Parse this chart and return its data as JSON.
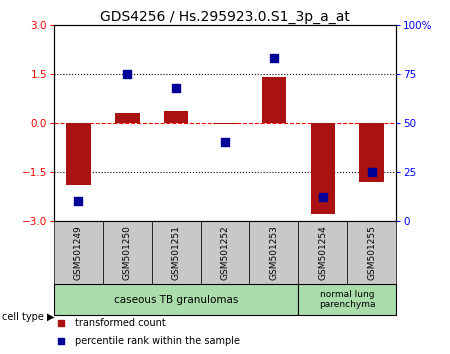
{
  "title": "GDS4256 / Hs.295923.0.S1_3p_a_at",
  "samples": [
    "GSM501249",
    "GSM501250",
    "GSM501251",
    "GSM501252",
    "GSM501253",
    "GSM501254",
    "GSM501255"
  ],
  "red_values": [
    -1.9,
    0.3,
    0.35,
    -0.05,
    1.4,
    -2.8,
    -1.8
  ],
  "blue_values_pct": [
    10,
    75,
    68,
    40,
    83,
    12,
    25
  ],
  "ylim": [
    -3,
    3
  ],
  "pct_lim": [
    0,
    100
  ],
  "yticks_left": [
    -3,
    -1.5,
    0,
    1.5,
    3
  ],
  "yticks_right": [
    0,
    25,
    50,
    75,
    100
  ],
  "hlines": [
    [
      -1.5,
      "dotted",
      "black"
    ],
    [
      0,
      "dashed",
      "red"
    ],
    [
      1.5,
      "dotted",
      "black"
    ]
  ],
  "group1_indices": [
    0,
    1,
    2,
    3,
    4
  ],
  "group2_indices": [
    5,
    6
  ],
  "group1_label": "caseous TB granulomas",
  "group2_label": "normal lung\nparenchyma",
  "group_color": "#aaddaa",
  "cell_type_label": "cell type",
  "legend_red_label": "transformed count",
  "legend_blue_label": "percentile rank within the sample",
  "bar_width": 0.5,
  "bar_color": "#aa1111",
  "dot_color": "#000099",
  "tick_bg_color": "#c8c8c8",
  "plot_bg": "#ffffff",
  "title_fontsize": 10
}
